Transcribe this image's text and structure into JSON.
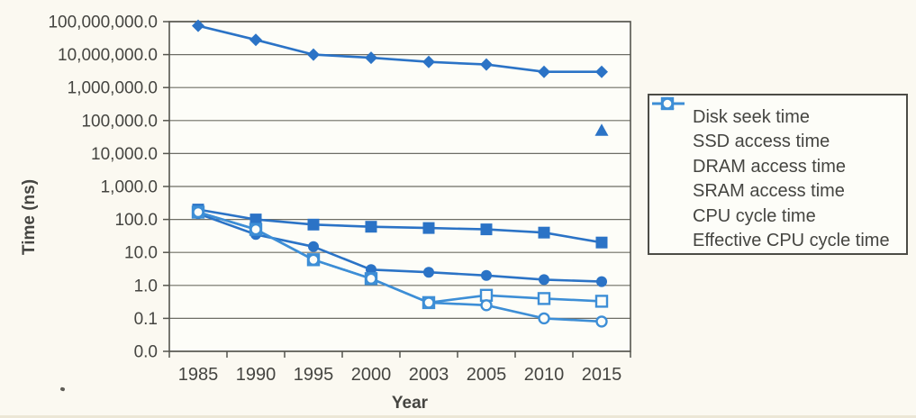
{
  "chart_data": {
    "type": "line",
    "title": "",
    "xlabel": "Year",
    "ylabel": "Time (ns)",
    "y_scale": "log",
    "ylim": [
      0.01,
      100000000
    ],
    "grid": "horizontal",
    "legend_position": "right",
    "y_tick_labels": [
      "100,000,000.0",
      "10,000,000.0",
      "1,000,000.0",
      "100,000.0",
      "10,000.0",
      "1,000.0",
      "100.0",
      "10.0",
      "1.0",
      "0.1",
      "0.0"
    ],
    "categories": [
      "1985",
      "1990",
      "1995",
      "2000",
      "2003",
      "2005",
      "2010",
      "2015"
    ],
    "series": [
      {
        "name": "Disk seek time",
        "marker": "diamond",
        "fill": "solid",
        "values": [
          75000000,
          28000000,
          10000000,
          8000000,
          6000000,
          5000000,
          3000000,
          3000000
        ]
      },
      {
        "name": "SSD access time",
        "marker": "triangle",
        "fill": "solid",
        "values": [
          null,
          null,
          null,
          null,
          null,
          null,
          null,
          50000
        ]
      },
      {
        "name": "DRAM access time",
        "marker": "square",
        "fill": "solid",
        "values": [
          200,
          100,
          70,
          60,
          55,
          50,
          40,
          20
        ]
      },
      {
        "name": "SRAM access time",
        "marker": "circle",
        "fill": "solid",
        "values": [
          150,
          35,
          15,
          3,
          2.5,
          2,
          1.5,
          1.3
        ]
      },
      {
        "name": "CPU cycle time",
        "marker": "square",
        "fill": "open",
        "values": [
          166,
          50,
          6,
          1.6,
          0.3,
          0.5,
          0.4,
          0.33
        ]
      },
      {
        "name": "Effective CPU cycle time",
        "marker": "circle",
        "fill": "open",
        "values": [
          166,
          50,
          6,
          1.6,
          0.3,
          0.25,
          0.1,
          0.08
        ]
      }
    ]
  },
  "colors": {
    "series_solid": "#2b73c6",
    "series_open": "#3d8ed6",
    "marker_open_fill": "#fdfdf8",
    "grid": "#6e6e66",
    "axis": "#55554e",
    "text": "#454541",
    "plot_bg": "#fdfdf8",
    "page_bg": "#fbf9f1",
    "legend_border": "#4c4c46"
  }
}
